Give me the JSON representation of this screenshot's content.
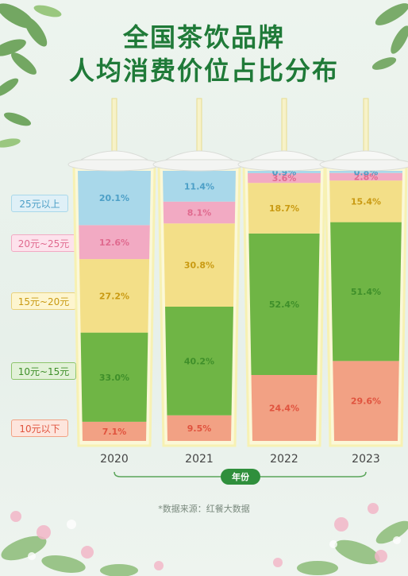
{
  "page": {
    "title_line1": "全国茶饮品牌",
    "title_line2": "人均消费价位占比分布",
    "footnote": "*数据来源：红餐大数据"
  },
  "colors": {
    "title": "#1f7a38",
    "band_25plus": "#a9d8ea",
    "band_20_25": "#f2aac3",
    "band_15_20": "#f3df88",
    "band_10_15": "#6fb545",
    "band_below10": "#f2a184",
    "cup_outline": "#f7f1b3",
    "lid": "#f3f4f2"
  },
  "chart_data": {
    "type": "bar",
    "stacked": true,
    "x_axis_label": "年份",
    "categories": [
      "2020",
      "2021",
      "2022",
      "2023"
    ],
    "series": [
      {
        "name": "10元以下",
        "values": [
          7.1,
          9.5,
          24.4,
          29.6
        ]
      },
      {
        "name": "10元~15元",
        "values": [
          33.0,
          40.2,
          52.4,
          51.4
        ]
      },
      {
        "name": "15元~20元",
        "values": [
          27.2,
          30.8,
          18.7,
          15.4
        ]
      },
      {
        "name": "20元~25元",
        "values": [
          12.6,
          8.1,
          3.6,
          2.8
        ]
      },
      {
        "name": "25元以上",
        "values": [
          20.1,
          11.4,
          0.9,
          0.8
        ]
      }
    ],
    "value_labels": [
      [
        "7.1%",
        "9.5%",
        "24.4%",
        "29.6%"
      ],
      [
        "33.0%",
        "40.2%",
        "52.4%",
        "51.4%"
      ],
      [
        "27.2%",
        "30.8%",
        "18.7%",
        "15.4%"
      ],
      [
        "12.6%",
        "8.1%",
        "3.6%",
        "2.8%"
      ],
      [
        "20.1%",
        "11.4%",
        "0.9%",
        "0.8%"
      ]
    ],
    "ylim": [
      0,
      100
    ],
    "legend_position": "left",
    "grid": false
  }
}
